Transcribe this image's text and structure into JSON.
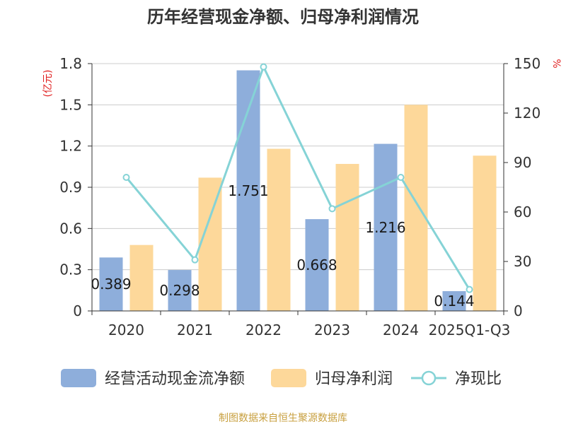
{
  "chart_data": {
    "type": "bar",
    "title": "历年经营现金净额、归母净利润情况",
    "y_left_unit": "(亿元)",
    "y_right_unit": "%",
    "categories": [
      "2020",
      "2021",
      "2022",
      "2023",
      "2024",
      "2025Q1-Q3"
    ],
    "left_axis": {
      "min": 0,
      "max": 1.8,
      "ticks": [
        "0",
        "0.3",
        "0.6",
        "0.9",
        "1.2",
        "1.5",
        "1.8"
      ],
      "tick_values": [
        0,
        0.3,
        0.6,
        0.9,
        1.2,
        1.5,
        1.8
      ]
    },
    "right_axis": {
      "min": 0,
      "max": 150,
      "ticks": [
        "0",
        "30",
        "60",
        "90",
        "120",
        "150"
      ],
      "tick_values": [
        0,
        30,
        60,
        90,
        120,
        150
      ]
    },
    "grid": true,
    "legend_position": "bottom",
    "series": [
      {
        "name": "经营活动现金流净额",
        "type": "bar",
        "axis": "left",
        "color": "#8eaedb",
        "values": [
          0.389,
          0.298,
          1.751,
          0.668,
          1.216,
          0.144
        ],
        "labels": [
          "0.389",
          "0.298",
          "1.751",
          "0.668",
          "1.216",
          "0.144"
        ]
      },
      {
        "name": "归母净利润",
        "type": "bar",
        "axis": "left",
        "color": "#fdd89a",
        "values": [
          0.48,
          0.97,
          1.18,
          1.07,
          1.5,
          1.13
        ]
      },
      {
        "name": "净现比",
        "type": "line",
        "axis": "right",
        "color": "#85d3d6",
        "values": [
          81,
          31,
          148,
          62,
          81,
          13
        ]
      }
    ],
    "source_note": "制图数据来自恒生聚源数据库"
  }
}
